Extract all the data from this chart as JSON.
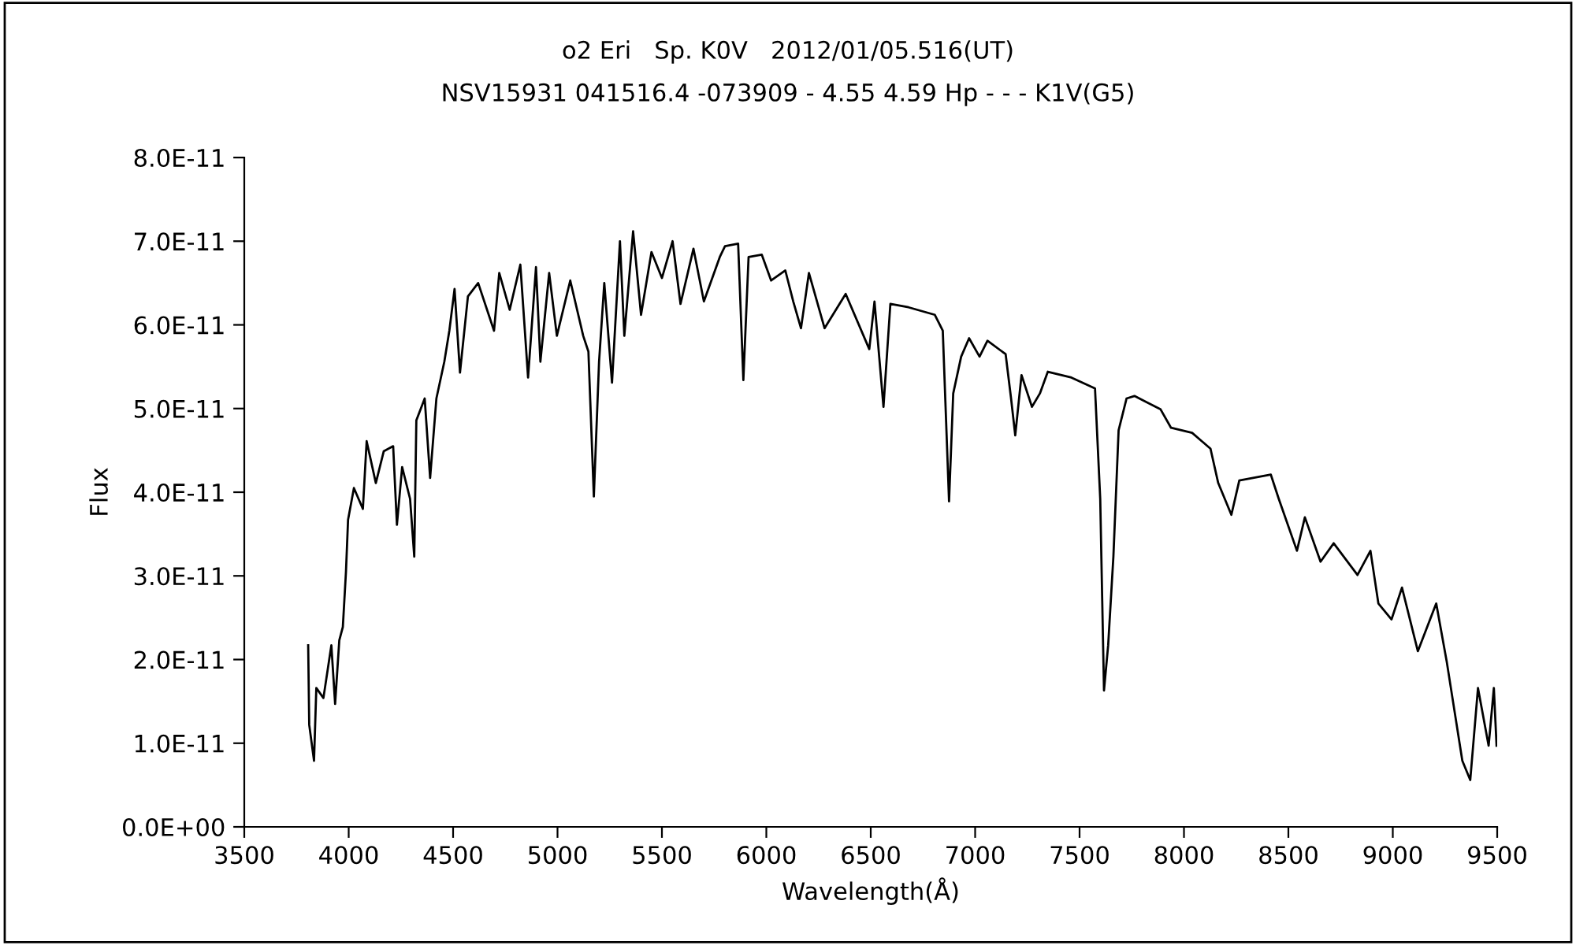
{
  "chart_data": {
    "type": "line",
    "title": "ο2 Eri   Sp. K0V   2012/01/05.516(UT)",
    "subtitle": "NSV15931 041516.4 -073909 - 4.55 4.59 Hp - - - K1V(G5)",
    "xlabel": "Wavelength(Å)",
    "ylabel": "Flux",
    "xlim": [
      3500,
      9500
    ],
    "xticks": [
      3500,
      4000,
      4500,
      5000,
      5500,
      6000,
      6500,
      7000,
      7500,
      8000,
      8500,
      9000,
      9500
    ],
    "ylim": [
      0,
      8e-11
    ],
    "yticks": [
      {
        "value": 0,
        "label": "0.0E+00"
      },
      {
        "value": 1e-11,
        "label": "1.0E-11"
      },
      {
        "value": 2e-11,
        "label": "2.0E-11"
      },
      {
        "value": 3e-11,
        "label": "3.0E-11"
      },
      {
        "value": 4e-11,
        "label": "4.0E-11"
      },
      {
        "value": 5e-11,
        "label": "5.0E-11"
      },
      {
        "value": 6e-11,
        "label": "6.0E-11"
      },
      {
        "value": 7e-11,
        "label": "7.0E-11"
      },
      {
        "value": 8e-11,
        "label": "8.0E-11"
      }
    ],
    "grid": false,
    "legend": false,
    "series": [
      {
        "color": "#000000",
        "x": [
          3806,
          3811,
          3834,
          3845,
          3879,
          3917,
          3935,
          3955,
          3972,
          3987,
          3997,
          4025,
          4068,
          4086,
          4130,
          4168,
          4213,
          4231,
          4256,
          4294,
          4314,
          4324,
          4364,
          4390,
          4420,
          4458,
          4482,
          4507,
          4533,
          4571,
          4620,
          4696,
          4721,
          4771,
          4822,
          4859,
          4897,
          4918,
          4960,
          4997,
          5061,
          5123,
          5148,
          5174,
          5199,
          5224,
          5261,
          5299,
          5320,
          5362,
          5400,
          5450,
          5500,
          5551,
          5589,
          5651,
          5701,
          5777,
          5802,
          5865,
          5890,
          5915,
          5978,
          6023,
          6091,
          6129,
          6166,
          6204,
          6279,
          6380,
          6493,
          6518,
          6561,
          6594,
          6681,
          6807,
          6845,
          6875,
          6895,
          6933,
          6971,
          7021,
          7059,
          7146,
          7172,
          7192,
          7222,
          7272,
          7310,
          7348,
          7461,
          7574,
          7599,
          7617,
          7637,
          7662,
          7687,
          7725,
          7763,
          7888,
          7938,
          8039,
          8127,
          8164,
          8227,
          8265,
          8416,
          8454,
          8541,
          8579,
          8654,
          8717,
          8831,
          8893,
          8931,
          8994,
          9044,
          9120,
          9208,
          9258,
          9333,
          9371,
          9408,
          9459,
          9484,
          9497
        ],
        "values": [
          2.17e-11,
          1.22e-11,
          7.9e-12,
          1.66e-11,
          1.54e-11,
          2.17e-11,
          1.47e-11,
          2.23e-11,
          2.39e-11,
          3.05e-11,
          3.67e-11,
          4.05e-11,
          3.8e-11,
          4.61e-11,
          4.11e-11,
          4.49e-11,
          4.55e-11,
          3.61e-11,
          4.3e-11,
          3.92e-11,
          3.23e-11,
          4.86e-11,
          5.12e-11,
          4.17e-11,
          5.12e-11,
          5.56e-11,
          5.93e-11,
          6.43e-11,
          5.43e-11,
          6.34e-11,
          6.5e-11,
          5.93e-11,
          6.62e-11,
          6.18e-11,
          6.72e-11,
          5.37e-11,
          6.69e-11,
          5.56e-11,
          6.62e-11,
          5.87e-11,
          6.53e-11,
          5.87e-11,
          5.68e-11,
          3.95e-11,
          5.56e-11,
          6.5e-11,
          5.31e-11,
          7e-11,
          5.87e-11,
          7.12e-11,
          6.12e-11,
          6.87e-11,
          6.56e-11,
          7e-11,
          6.25e-11,
          6.91e-11,
          6.28e-11,
          6.81e-11,
          6.94e-11,
          6.97e-11,
          5.34e-11,
          6.81e-11,
          6.84e-11,
          6.53e-11,
          6.65e-11,
          6.28e-11,
          5.96e-11,
          6.62e-11,
          5.96e-11,
          6.37e-11,
          5.71e-11,
          6.28e-11,
          5.02e-11,
          6.25e-11,
          6.21e-11,
          6.12e-11,
          5.93e-11,
          3.89e-11,
          5.18e-11,
          5.62e-11,
          5.84e-11,
          5.62e-11,
          5.81e-11,
          5.65e-11,
          5.12e-11,
          4.68e-11,
          5.4e-11,
          5.02e-11,
          5.18e-11,
          5.44e-11,
          5.37e-11,
          5.24e-11,
          3.92e-11,
          1.63e-11,
          2.17e-11,
          3.23e-11,
          4.74e-11,
          5.12e-11,
          5.15e-11,
          4.99e-11,
          4.77e-11,
          4.71e-11,
          4.52e-11,
          4.11e-11,
          3.73e-11,
          4.14e-11,
          4.21e-11,
          3.92e-11,
          3.3e-11,
          3.7e-11,
          3.17e-11,
          3.39e-11,
          3.01e-11,
          3.3e-11,
          2.67e-11,
          2.48e-11,
          2.86e-11,
          2.1e-11,
          2.67e-11,
          1.98e-11,
          7.9e-12,
          5.6e-12,
          1.66e-11,
          9.7e-12,
          1.66e-11,
          9.7e-12
        ]
      }
    ]
  }
}
